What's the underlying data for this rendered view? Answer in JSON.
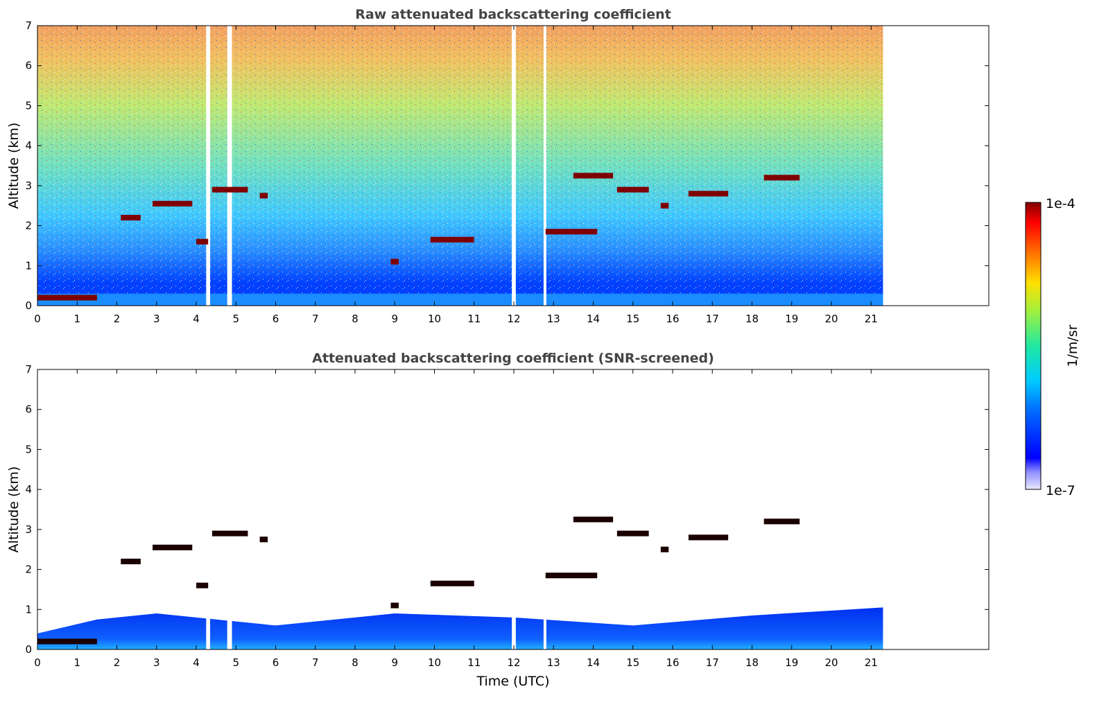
{
  "chart_data": [
    {
      "type": "heatmap",
      "title": "Raw attenuated backscattering coefficient",
      "xlabel": "",
      "ylabel": "Altitude (km)",
      "xlim": [
        0,
        24
      ],
      "ylim": [
        0,
        7
      ],
      "xticks": [
        "0",
        "1",
        "2",
        "3",
        "4",
        "5",
        "6",
        "7",
        "8",
        "9",
        "10",
        "11",
        "12",
        "13",
        "14",
        "15",
        "16",
        "17",
        "18",
        "19",
        "20",
        "21"
      ],
      "yticks": [
        "0",
        "1",
        "2",
        "3",
        "4",
        "5",
        "6",
        "7"
      ],
      "data_extent_hours": [
        0,
        21.3
      ],
      "gaps_hours": [
        [
          4.25,
          4.35
        ],
        [
          4.78,
          4.9
        ],
        [
          11.95,
          12.05
        ],
        [
          12.75,
          12.82
        ]
      ],
      "cloud_layers": [
        {
          "t0": 2.1,
          "t1": 2.6,
          "alt": 2.2
        },
        {
          "t0": 2.9,
          "t1": 3.9,
          "alt": 2.55
        },
        {
          "t0": 4.0,
          "t1": 4.3,
          "alt": 1.6
        },
        {
          "t0": 4.4,
          "t1": 5.3,
          "alt": 2.9
        },
        {
          "t0": 5.6,
          "t1": 5.8,
          "alt": 2.75
        },
        {
          "t0": 8.9,
          "t1": 9.1,
          "alt": 1.1
        },
        {
          "t0": 9.9,
          "t1": 11.0,
          "alt": 1.65
        },
        {
          "t0": 12.8,
          "t1": 14.1,
          "alt": 1.85
        },
        {
          "t0": 13.5,
          "t1": 14.5,
          "alt": 3.25
        },
        {
          "t0": 14.6,
          "t1": 15.4,
          "alt": 2.9
        },
        {
          "t0": 15.7,
          "t1": 15.9,
          "alt": 2.5
        },
        {
          "t0": 16.4,
          "t1": 17.4,
          "alt": 2.8
        },
        {
          "t0": 18.3,
          "t1": 19.2,
          "alt": 3.2
        },
        {
          "t0": 0.0,
          "t1": 1.5,
          "alt": 0.2
        }
      ]
    },
    {
      "type": "heatmap",
      "title": "Attenuated backscattering coefficient (SNR-screened)",
      "xlabel": "Time (UTC)",
      "ylabel": "Altitude (km)",
      "xlim": [
        0,
        24
      ],
      "ylim": [
        0,
        7
      ],
      "xticks": [
        "0",
        "1",
        "2",
        "3",
        "4",
        "5",
        "6",
        "7",
        "8",
        "9",
        "10",
        "11",
        "12",
        "13",
        "14",
        "15",
        "16",
        "17",
        "18",
        "19",
        "20",
        "21"
      ],
      "yticks": [
        "0",
        "1",
        "2",
        "3",
        "4",
        "5",
        "6",
        "7"
      ],
      "data_extent_hours": [
        0,
        21.3
      ],
      "boundary_layer_top_km": [
        [
          0,
          0.4
        ],
        [
          1.5,
          0.75
        ],
        [
          3,
          0.9
        ],
        [
          6,
          0.6
        ],
        [
          9,
          0.9
        ],
        [
          12,
          0.8
        ],
        [
          15,
          0.6
        ],
        [
          18,
          0.85
        ],
        [
          21.3,
          1.05
        ]
      ]
    }
  ],
  "colorbar": {
    "max_label": "1e-4",
    "min_label": "1e-7",
    "unit_label": "1/m/sr"
  },
  "colors": {
    "low": "#0000ff",
    "mid": "#00ffaa",
    "high": "#ff0000",
    "cloud": "#7f0000"
  }
}
